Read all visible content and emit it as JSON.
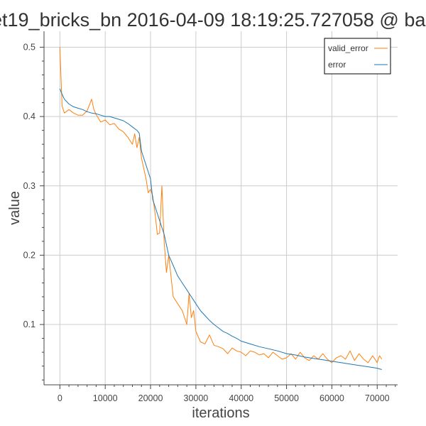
{
  "chart_data": {
    "type": "line",
    "title": "et19_bricks_bn 2016-04-09 18:19:25.727058 @ ba",
    "xlabel": "iterations",
    "ylabel": "value",
    "xlim": [
      -3500,
      74500
    ],
    "ylim": [
      0.013,
      0.523
    ],
    "grid": true,
    "legend_position": "top-right",
    "xticks": [
      0,
      10000,
      20000,
      30000,
      40000,
      50000,
      60000,
      70000
    ],
    "xtick_labels": [
      "0",
      "10000",
      "20000",
      "30000",
      "40000",
      "50000",
      "60000",
      "70000"
    ],
    "yticks": [
      0.1,
      0.2,
      0.3,
      0.4,
      0.5
    ],
    "ytick_labels": [
      "0.1",
      "0.2",
      "0.3",
      "0.4",
      "0.5"
    ],
    "series": [
      {
        "name": "valid_error",
        "color": "#ff7f0e",
        "x": [
          0,
          500,
          1000,
          2000,
          3000,
          4000,
          5000,
          6000,
          7000,
          7500,
          8000,
          9000,
          10000,
          11000,
          12000,
          13000,
          14000,
          15000,
          16000,
          16500,
          17000,
          17500,
          18000,
          19000,
          19500,
          20000,
          20500,
          21000,
          21500,
          22000,
          22500,
          23000,
          23500,
          24000,
          24500,
          25000,
          26000,
          27000,
          28000,
          28500,
          29000,
          29500,
          30000,
          31000,
          32000,
          33000,
          34000,
          35000,
          36000,
          37000,
          38000,
          39000,
          40000,
          41000,
          42000,
          43000,
          44000,
          45000,
          46000,
          47000,
          48000,
          49000,
          50000,
          51000,
          52000,
          53000,
          54000,
          55000,
          56000,
          57000,
          58000,
          59000,
          60000,
          61000,
          62000,
          63000,
          64000,
          65000,
          66000,
          67000,
          68000,
          69000,
          70000,
          70500,
          71000
        ],
        "values": [
          0.5,
          0.415,
          0.405,
          0.41,
          0.405,
          0.402,
          0.402,
          0.408,
          0.425,
          0.41,
          0.403,
          0.392,
          0.395,
          0.388,
          0.39,
          0.382,
          0.378,
          0.37,
          0.36,
          0.375,
          0.355,
          0.37,
          0.34,
          0.31,
          0.29,
          0.295,
          0.285,
          0.26,
          0.23,
          0.232,
          0.3,
          0.22,
          0.175,
          0.2,
          0.17,
          0.14,
          0.13,
          0.12,
          0.1,
          0.145,
          0.11,
          0.12,
          0.09,
          0.075,
          0.072,
          0.085,
          0.07,
          0.068,
          0.065,
          0.058,
          0.066,
          0.062,
          0.06,
          0.055,
          0.062,
          0.06,
          0.056,
          0.058,
          0.052,
          0.06,
          0.055,
          0.05,
          0.052,
          0.058,
          0.05,
          0.06,
          0.052,
          0.048,
          0.055,
          0.05,
          0.058,
          0.05,
          0.045,
          0.052,
          0.055,
          0.05,
          0.062,
          0.048,
          0.058,
          0.05,
          0.045,
          0.055,
          0.045,
          0.055,
          0.05
        ]
      },
      {
        "name": "error",
        "color": "#1f77b4",
        "x": [
          0,
          500,
          1000,
          2000,
          3000,
          4000,
          5000,
          6000,
          7000,
          8000,
          9000,
          10000,
          11000,
          12000,
          13000,
          14000,
          15000,
          16000,
          17000,
          17500,
          18000,
          19000,
          20000,
          20500,
          21000,
          22000,
          23000,
          24000,
          25000,
          26000,
          27000,
          28000,
          29000,
          30000,
          31000,
          32000,
          33000,
          34000,
          35000,
          36000,
          37000,
          38000,
          39000,
          40000,
          42000,
          44000,
          46000,
          48000,
          50000,
          52000,
          54000,
          56000,
          58000,
          60000,
          62000,
          64000,
          66000,
          68000,
          70000,
          71000
        ],
        "values": [
          0.44,
          0.432,
          0.425,
          0.418,
          0.414,
          0.412,
          0.41,
          0.407,
          0.405,
          0.404,
          0.402,
          0.4,
          0.4,
          0.398,
          0.396,
          0.394,
          0.39,
          0.385,
          0.38,
          0.376,
          0.35,
          0.33,
          0.31,
          0.28,
          0.27,
          0.25,
          0.23,
          0.2,
          0.185,
          0.17,
          0.16,
          0.15,
          0.14,
          0.13,
          0.12,
          0.113,
          0.106,
          0.1,
          0.095,
          0.09,
          0.087,
          0.083,
          0.08,
          0.076,
          0.072,
          0.068,
          0.065,
          0.062,
          0.058,
          0.056,
          0.053,
          0.051,
          0.049,
          0.047,
          0.045,
          0.043,
          0.041,
          0.039,
          0.037,
          0.035
        ]
      }
    ]
  }
}
